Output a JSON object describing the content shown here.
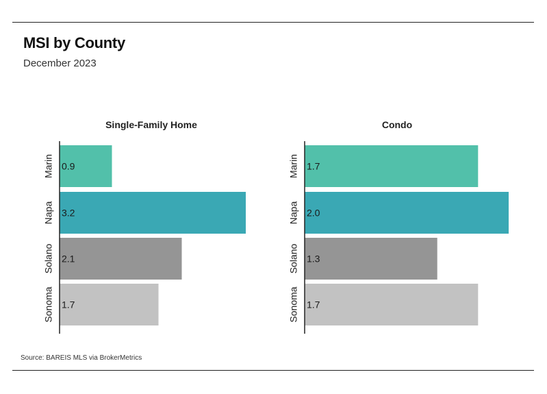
{
  "header": {
    "title": "MSI by County",
    "subtitle": "December 2023"
  },
  "footer": {
    "source": "Source:  BAREIS MLS via BrokerMetrics"
  },
  "chart_data": [
    {
      "type": "bar",
      "orientation": "horizontal",
      "title": "Single-Family Home",
      "categories": [
        "Marin",
        "Napa",
        "Solano",
        "Sonoma"
      ],
      "values": [
        0.9,
        3.2,
        2.1,
        1.7
      ],
      "value_labels": [
        "0.9",
        "3.2",
        "2.1",
        "1.7"
      ],
      "colors": [
        "#52c0aa",
        "#3aa8b4",
        "#959595",
        "#c2c2c2"
      ],
      "xlim": [
        0,
        3.2
      ],
      "grid": false,
      "legend": "none"
    },
    {
      "type": "bar",
      "orientation": "horizontal",
      "title": "Condo",
      "categories": [
        "Marin",
        "Napa",
        "Solano",
        "Sonoma"
      ],
      "values": [
        1.7,
        2.0,
        1.3,
        1.7
      ],
      "value_labels": [
        "1.7",
        "2.0",
        "1.3",
        "1.7"
      ],
      "colors": [
        "#52c0aa",
        "#3aa8b4",
        "#959595",
        "#c2c2c2"
      ],
      "xlim": [
        0,
        2.0
      ],
      "grid": false,
      "legend": "none"
    }
  ]
}
